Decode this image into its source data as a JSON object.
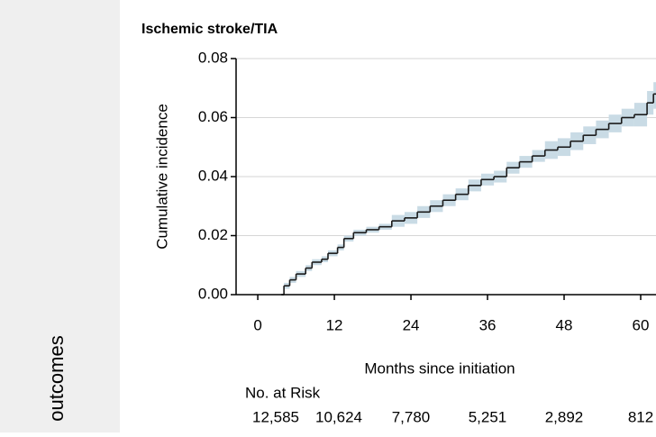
{
  "sidebar_label": "outcomes",
  "chart_data": {
    "type": "step",
    "title": "Ischemic stroke/TIA",
    "y_label": "Cumulative incidence",
    "x_label": "Months since initiation",
    "x": [
      3.7,
      4.1,
      5,
      6,
      7.5,
      8.5,
      10,
      11,
      12.5,
      13.5,
      15,
      17,
      19,
      21,
      23,
      25,
      27,
      29,
      31,
      33,
      35,
      37,
      39,
      41,
      43,
      45,
      47,
      49,
      51,
      53,
      55,
      57,
      59,
      61,
      62
    ],
    "series": [
      {
        "color": "#1a1a1a",
        "band_color": "#c9dbe5",
        "values": [
          0,
          0.003,
          0.005,
          0.007,
          0.009,
          0.011,
          0.012,
          0.014,
          0.016,
          0.019,
          0.021,
          0.022,
          0.023,
          0.025,
          0.026,
          0.028,
          0.03,
          0.032,
          0.034,
          0.037,
          0.039,
          0.04,
          0.043,
          0.045,
          0.047,
          0.049,
          0.05,
          0.052,
          0.054,
          0.056,
          0.058,
          0.06,
          0.061,
          0.065,
          0.068
        ],
        "lower": [
          0,
          0.002,
          0.004,
          0.006,
          0.008,
          0.01,
          0.011,
          0.013,
          0.015,
          0.018,
          0.02,
          0.021,
          0.022,
          0.023,
          0.024,
          0.026,
          0.028,
          0.03,
          0.032,
          0.035,
          0.037,
          0.038,
          0.041,
          0.043,
          0.045,
          0.046,
          0.047,
          0.049,
          0.051,
          0.053,
          0.055,
          0.057,
          0.057,
          0.061,
          0.063
        ],
        "upper": [
          0,
          0.004,
          0.006,
          0.008,
          0.01,
          0.012,
          0.013,
          0.015,
          0.017,
          0.02,
          0.022,
          0.023,
          0.024,
          0.027,
          0.028,
          0.03,
          0.032,
          0.034,
          0.036,
          0.039,
          0.041,
          0.042,
          0.045,
          0.047,
          0.049,
          0.052,
          0.053,
          0.055,
          0.057,
          0.059,
          0.061,
          0.063,
          0.065,
          0.069,
          0.072
        ]
      }
    ],
    "xlim": [
      -3.4,
      62.4
    ],
    "ylim": [
      0,
      0.08
    ],
    "xticks": [
      0,
      12,
      24,
      36,
      48,
      60
    ],
    "yticks": [
      {
        "value": 0,
        "label": "0.00"
      },
      {
        "value": 0.02,
        "label": "0.02"
      },
      {
        "value": 0.04,
        "label": "0.04"
      },
      {
        "value": 0.06,
        "label": "0.06"
      },
      {
        "value": 0.08,
        "label": "0.08"
      }
    ],
    "grid": true,
    "risk_table": {
      "title": "No. at Risk",
      "values": [
        12585,
        10624,
        7780,
        5251,
        2892,
        812
      ],
      "value_labels": [
        "12,585",
        "10,624",
        "7,780",
        "5,251",
        "2,892",
        "812"
      ]
    }
  }
}
